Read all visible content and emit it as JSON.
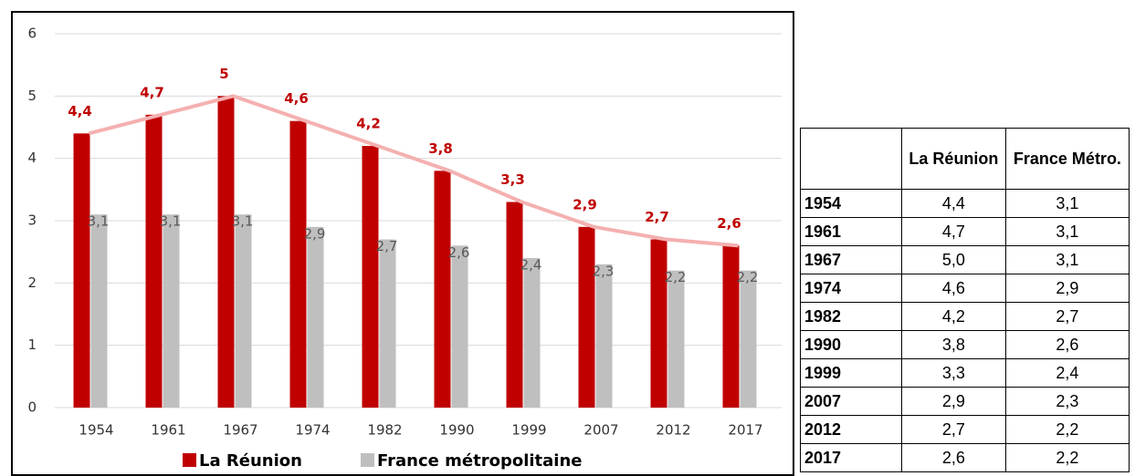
{
  "chart_data": {
    "type": "bar",
    "categories": [
      "1954",
      "1961",
      "1967",
      "1974",
      "1982",
      "1990",
      "1999",
      "2007",
      "2012",
      "2017"
    ],
    "series": [
      {
        "name": "La Réunion",
        "color": "#c00000",
        "values": [
          4.4,
          4.7,
          5,
          4.6,
          4.2,
          3.8,
          3.3,
          2.9,
          2.7,
          2.6
        ],
        "value_labels": [
          "4,4",
          "4,7",
          "5",
          "4,6",
          "4,2",
          "3,8",
          "3,3",
          "2,9",
          "2,7",
          "2,6"
        ],
        "line_color": "#f4b0b0"
      },
      {
        "name": "France métropolitaine",
        "color": "#bfbfbf",
        "values": [
          3.1,
          3.1,
          3.1,
          2.9,
          2.7,
          2.6,
          2.4,
          2.3,
          2.2,
          2.2
        ],
        "value_labels": [
          "3,1",
          "3,1",
          "3,1",
          "2,9",
          "2,7",
          "2,6",
          "2,4",
          "2,3",
          "2,2",
          "2,2"
        ]
      }
    ],
    "ylim": [
      0,
      6
    ],
    "yticks": [
      0,
      1,
      2,
      3,
      4,
      5,
      6
    ],
    "grid": true,
    "legend": "bottom"
  },
  "table": {
    "columns": [
      "La Réunion",
      "France Métro."
    ],
    "rows": [
      [
        "1954",
        "4,4",
        "3,1"
      ],
      [
        "1961",
        "4,7",
        "3,1"
      ],
      [
        "1967",
        "5,0",
        "3,1"
      ],
      [
        "1974",
        "4,6",
        "2,9"
      ],
      [
        "1982",
        "4,2",
        "2,7"
      ],
      [
        "1990",
        "3,8",
        "2,6"
      ],
      [
        "1999",
        "3,3",
        "2,4"
      ],
      [
        "2007",
        "2,9",
        "2,3"
      ],
      [
        "2012",
        "2,7",
        "2,2"
      ],
      [
        "2017",
        "2,6",
        "2,2"
      ]
    ]
  }
}
